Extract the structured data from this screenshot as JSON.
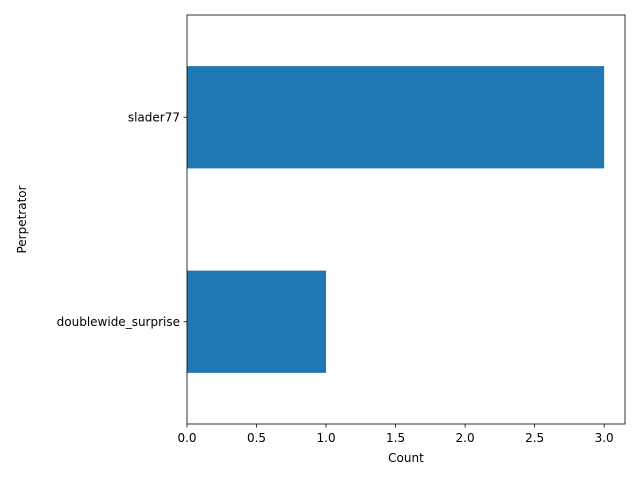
{
  "chart_data": {
    "type": "bar",
    "orientation": "horizontal",
    "title": "",
    "xlabel": "Count",
    "ylabel": "Perpetrator",
    "categories": [
      "slader77",
      "doublewide_surprise"
    ],
    "values": [
      3,
      1
    ],
    "xlim": [
      0,
      3.15
    ],
    "x_ticks": [
      "0.0",
      "0.5",
      "1.0",
      "1.5",
      "2.0",
      "2.5",
      "3.0"
    ],
    "grid": false,
    "legend": "none",
    "bar_color": "#1f77b4"
  }
}
